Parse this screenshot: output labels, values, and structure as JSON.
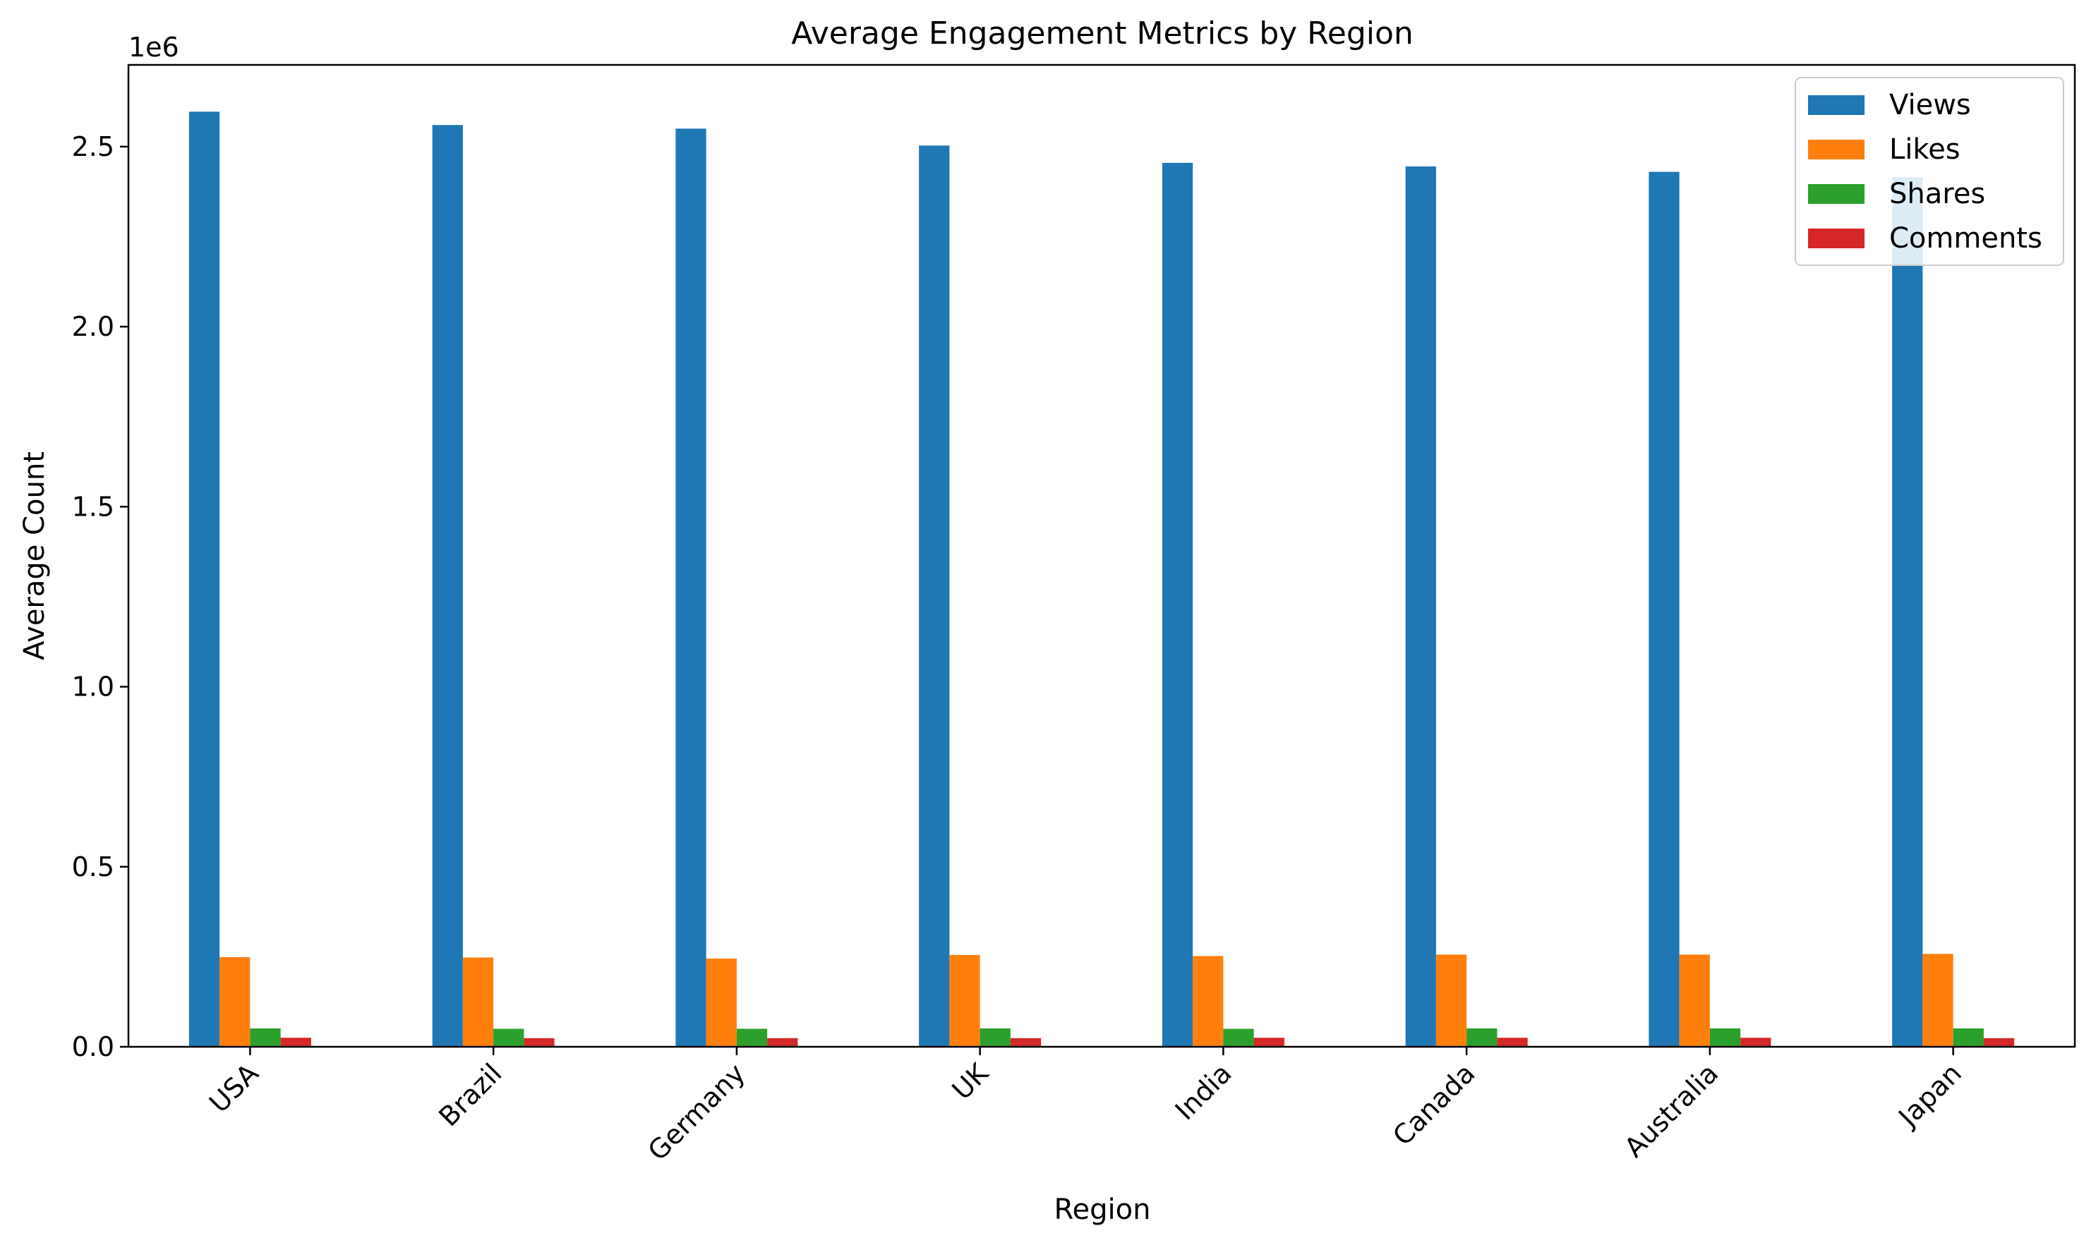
{
  "chart_data": {
    "type": "bar",
    "title": "Average Engagement Metrics by Region",
    "xlabel": "Region",
    "ylabel": "Average Count",
    "y_offset_label": "1e6",
    "categories": [
      "USA",
      "Brazil",
      "Germany",
      "UK",
      "India",
      "Canada",
      "Australia",
      "Japan"
    ],
    "series": [
      {
        "name": "Views",
        "color": "#1f77b4",
        "values": [
          2597000,
          2560000,
          2550000,
          2503000,
          2455000,
          2445000,
          2430000,
          2415000
        ]
      },
      {
        "name": "Likes",
        "color": "#ff7f0e",
        "values": [
          249000,
          248000,
          245000,
          255000,
          252000,
          256000,
          256000,
          258000
        ]
      },
      {
        "name": "Shares",
        "color": "#2ca02c",
        "values": [
          51000,
          50000,
          50000,
          51000,
          50000,
          51000,
          51000,
          51000
        ]
      },
      {
        "name": "Comments",
        "color": "#d62728",
        "values": [
          25000,
          24000,
          24000,
          24000,
          25000,
          25000,
          25000,
          24000
        ]
      }
    ],
    "ylim": [
      0,
      2727000
    ],
    "yticks": [
      0,
      500000,
      1000000,
      1500000,
      2000000,
      2500000
    ],
    "ytick_labels": [
      "0.0",
      "0.5",
      "1.0",
      "1.5",
      "2.0",
      "2.5"
    ],
    "grid": false,
    "legend_position": "top-right"
  }
}
